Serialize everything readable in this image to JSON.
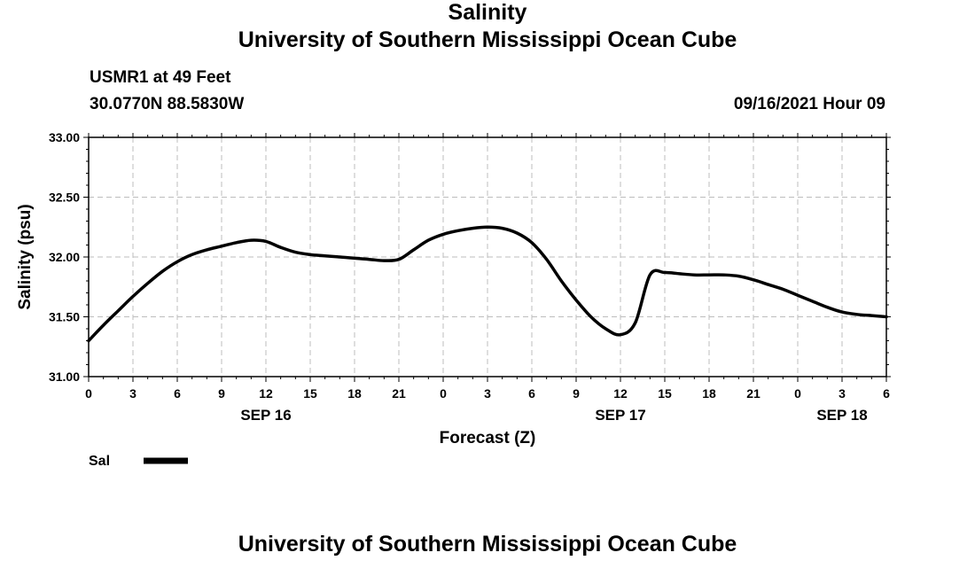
{
  "header": {
    "top_title": "University of Southern Mississippi Ocean Cube",
    "station": "USMR1 at 49 Feet",
    "coords": "30.0770N  88.5830W",
    "date": "09/16/2021 Hour 09",
    "bottom_title": "University of Southern Mississippi Ocean Cube"
  },
  "chart_data": {
    "type": "line",
    "title": "Salinity",
    "xlabel": "Forecast (Z)",
    "ylabel": "Salinity (psu)",
    "xlim": [
      0,
      54
    ],
    "ylim": [
      31.0,
      33.0
    ],
    "grid": true,
    "x_ticks": [
      0,
      3,
      6,
      9,
      12,
      15,
      18,
      21,
      24,
      27,
      30,
      33,
      36,
      39,
      42,
      45,
      48,
      51,
      54
    ],
    "x_tick_labels": [
      "0",
      "3",
      "6",
      "9",
      "12",
      "15",
      "18",
      "21",
      "0",
      "3",
      "6",
      "9",
      "12",
      "15",
      "18",
      "21",
      "0",
      "3",
      "6"
    ],
    "y_ticks": [
      31.0,
      31.5,
      32.0,
      32.5,
      33.0
    ],
    "y_tick_labels": [
      "31.00",
      "31.50",
      "32.00",
      "32.50",
      "33.00"
    ],
    "date_labels": [
      {
        "x": 12,
        "label": "SEP 16"
      },
      {
        "x": 36,
        "label": "SEP 17"
      },
      {
        "x": 51,
        "label": "SEP 18"
      }
    ],
    "legend": {
      "label": "Sal",
      "placement": "bottom-left",
      "color": "#000000"
    },
    "series": [
      {
        "name": "Sal",
        "color": "#000000",
        "x": [
          0,
          1,
          2,
          3,
          4,
          5,
          6,
          7,
          8,
          9,
          10,
          11,
          12,
          13,
          14,
          15,
          16,
          17,
          18,
          19,
          20,
          21,
          22,
          23,
          24,
          25,
          26,
          27,
          28,
          29,
          30,
          31,
          32,
          33,
          34,
          35,
          36,
          37,
          38,
          39,
          40,
          41,
          42,
          43,
          44,
          45,
          46,
          47,
          48,
          49,
          50,
          51,
          52,
          53,
          54
        ],
        "values": [
          31.3,
          31.43,
          31.55,
          31.67,
          31.78,
          31.88,
          31.96,
          32.02,
          32.06,
          32.09,
          32.12,
          32.14,
          32.13,
          32.08,
          32.04,
          32.02,
          32.01,
          32.0,
          31.99,
          31.98,
          31.97,
          31.98,
          32.06,
          32.14,
          32.19,
          32.22,
          32.24,
          32.25,
          32.24,
          32.2,
          32.12,
          31.98,
          31.8,
          31.64,
          31.5,
          31.4,
          31.35,
          31.45,
          31.85,
          31.87,
          31.86,
          31.85,
          31.85,
          31.85,
          31.84,
          31.81,
          31.77,
          31.73,
          31.68,
          31.63,
          31.58,
          31.54,
          31.52,
          31.51,
          31.5
        ]
      }
    ]
  }
}
